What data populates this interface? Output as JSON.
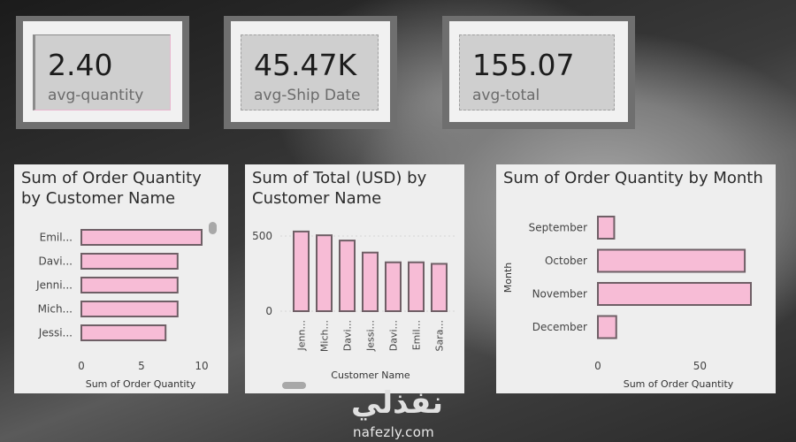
{
  "kpis": [
    {
      "value": "2.40",
      "label": "avg-quantity"
    },
    {
      "value": "45.47K",
      "label": "avg-Ship Date"
    },
    {
      "value": "155.07",
      "label": "avg-total"
    }
  ],
  "chart_data": [
    {
      "type": "bar",
      "orientation": "horizontal",
      "title": "Sum of Order Quantity by Customer Name",
      "categories": [
        "Emil...",
        "Davi...",
        "Jenni...",
        "Mich...",
        "Jessi..."
      ],
      "values": [
        10,
        8,
        8,
        8,
        7
      ],
      "xlabel": "Sum of Order Quantity",
      "ylabel": "",
      "xlim": [
        0,
        10
      ],
      "xticks": [
        "0",
        "5",
        "10"
      ],
      "bar_color": "#f7bcd6",
      "bar_border": "#6f5f66"
    },
    {
      "type": "bar",
      "orientation": "vertical",
      "title": "Sum of Total (USD) by Customer Name",
      "categories": [
        "Jenn...",
        "Mich...",
        "Davi...",
        "Jessi...",
        "Davi...",
        "Emil...",
        "Sara..."
      ],
      "values": [
        530,
        505,
        470,
        390,
        325,
        325,
        315
      ],
      "xlabel": "Customer Name",
      "ylabel": "",
      "ylim": [
        0,
        600
      ],
      "yticks": [
        "0",
        "500"
      ],
      "bar_color": "#f7bcd6",
      "bar_border": "#6f5f66"
    },
    {
      "type": "bar",
      "orientation": "horizontal",
      "title": "Sum of Order Quantity by Month",
      "categories": [
        "September",
        "October",
        "November",
        "December"
      ],
      "values": [
        8,
        72,
        75,
        9
      ],
      "xlabel": "Sum of Order Quantity",
      "ylabel": "Month",
      "xlim": [
        0,
        75
      ],
      "xticks": [
        "0",
        "50"
      ],
      "bar_color": "#f7bcd6",
      "bar_border": "#6f5f66"
    }
  ],
  "watermark": {
    "arabic": "نفذلي",
    "latin": "nafezly.com"
  }
}
